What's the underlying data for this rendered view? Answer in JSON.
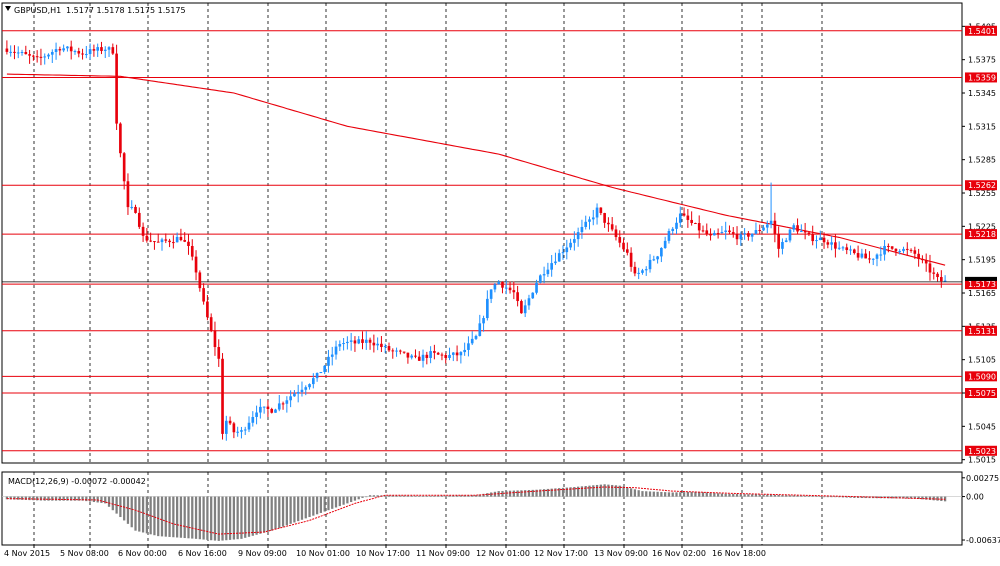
{
  "chart_data": [
    {
      "type": "candlestick",
      "header": {
        "symbol_label": "GBPUSD,H1",
        "ohlc_text": "1.5177 1.5178 1.5175 1.5175"
      },
      "y_tick_labels": [
        "1.5405",
        "1.5375",
        "1.5345",
        "1.5315",
        "1.5285",
        "1.5255",
        "1.5225",
        "1.5195",
        "1.5165",
        "1.5135",
        "1.5105",
        "1.5075",
        "1.5045",
        "1.5015"
      ],
      "y_ticks": [
        1.5405,
        1.5375,
        1.5345,
        1.5315,
        1.5285,
        1.5255,
        1.5225,
        1.5195,
        1.5165,
        1.5135,
        1.5105,
        1.5075,
        1.5045,
        1.5015
      ],
      "ylim": [
        1.5012,
        1.5426
      ],
      "x_tick_labels": [
        "4 Nov 2015",
        "5 Nov 08:00",
        "6 Nov 00:00",
        "6 Nov 16:00",
        "9 Nov 09:00",
        "10 Nov 01:00",
        "10 Nov 17:00",
        "11 Nov 09:00",
        "12 Nov 01:00",
        "12 Nov 17:00",
        "13 Nov 09:00",
        "16 Nov 02:00",
        "16 Nov 18:00"
      ],
      "horizontal_levels": [
        {
          "value": 1.5401,
          "label": "1.5401"
        },
        {
          "value": 1.5359,
          "label": "1.5359"
        },
        {
          "value": 1.5262,
          "label": "1.5262"
        },
        {
          "value": 1.5218,
          "label": "1.5218"
        },
        {
          "value": 1.5173,
          "label": "1.5173"
        },
        {
          "value": 1.5131,
          "label": "1.5131"
        },
        {
          "value": 1.509,
          "label": "1.5090"
        },
        {
          "value": 1.5075,
          "label": "1.5075"
        },
        {
          "value": 1.5023,
          "label": "1.5023"
        }
      ],
      "current_price": {
        "value": 1.5175
      },
      "price_anchors": [
        [
          0,
          1.5385
        ],
        [
          8,
          1.5375
        ],
        [
          14,
          1.5386
        ],
        [
          20,
          1.5381
        ],
        [
          26,
          1.5385
        ],
        [
          28,
          1.5383
        ],
        [
          29,
          1.532
        ],
        [
          30,
          1.529
        ],
        [
          32,
          1.524
        ],
        [
          34,
          1.524
        ],
        [
          36,
          1.5215
        ],
        [
          40,
          1.521
        ],
        [
          46,
          1.5215
        ],
        [
          48,
          1.5205
        ],
        [
          50,
          1.5185
        ],
        [
          52,
          1.5155
        ],
        [
          54,
          1.513
        ],
        [
          56,
          1.5105
        ],
        [
          57,
          1.504
        ],
        [
          58,
          1.505
        ],
        [
          60,
          1.504
        ],
        [
          62,
          1.504
        ],
        [
          64,
          1.505
        ],
        [
          66,
          1.506
        ],
        [
          70,
          1.506
        ],
        [
          74,
          1.507
        ],
        [
          78,
          1.508
        ],
        [
          82,
          1.509
        ],
        [
          86,
          1.511
        ],
        [
          88,
          1.512
        ],
        [
          92,
          1.512
        ],
        [
          96,
          1.5122
        ],
        [
          100,
          1.5115
        ],
        [
          104,
          1.511
        ],
        [
          108,
          1.5105
        ],
        [
          112,
          1.511
        ],
        [
          116,
          1.5108
        ],
        [
          120,
          1.511
        ],
        [
          124,
          1.5125
        ],
        [
          126,
          1.5145
        ],
        [
          128,
          1.517
        ],
        [
          130,
          1.5175
        ],
        [
          134,
          1.5165
        ],
        [
          136,
          1.5145
        ],
        [
          138,
          1.516
        ],
        [
          140,
          1.5175
        ],
        [
          142,
          1.5185
        ],
        [
          146,
          1.52
        ],
        [
          150,
          1.5215
        ],
        [
          154,
          1.523
        ],
        [
          156,
          1.524
        ],
        [
          158,
          1.523
        ],
        [
          160,
          1.522
        ],
        [
          164,
          1.52
        ],
        [
          166,
          1.518
        ],
        [
          168,
          1.5185
        ],
        [
          172,
          1.52
        ],
        [
          176,
          1.5225
        ],
        [
          178,
          1.5235
        ],
        [
          182,
          1.5225
        ],
        [
          186,
          1.5215
        ],
        [
          190,
          1.522
        ],
        [
          194,
          1.5215
        ],
        [
          198,
          1.522
        ],
        [
          202,
          1.523
        ],
        [
          204,
          1.5205
        ],
        [
          208,
          1.5225
        ],
        [
          212,
          1.5215
        ],
        [
          216,
          1.5213
        ],
        [
          220,
          1.5205
        ],
        [
          224,
          1.52
        ],
        [
          228,
          1.5195
        ],
        [
          232,
          1.5205
        ],
        [
          236,
          1.5205
        ],
        [
          240,
          1.52
        ],
        [
          244,
          1.5185
        ],
        [
          246,
          1.5177
        ],
        [
          248,
          1.5175
        ]
      ],
      "moving_average": [
        [
          0,
          1.5362
        ],
        [
          30,
          1.536
        ],
        [
          60,
          1.5345
        ],
        [
          90,
          1.5315
        ],
        [
          130,
          1.529
        ],
        [
          160,
          1.526
        ],
        [
          190,
          1.5235
        ],
        [
          220,
          1.5215
        ],
        [
          248,
          1.519
        ]
      ]
    },
    {
      "type": "histogram",
      "header_text": "MACD(12,26,9) -0.00072 -0.00042",
      "y_tick_labels": [
        "0.00275",
        "0.00",
        "-0.00637"
      ],
      "y_ticks": [
        0.00275,
        0.0,
        -0.00637
      ],
      "ylim": [
        -0.0071,
        0.0036
      ],
      "histogram_anchors": [
        [
          0,
          -0.0004
        ],
        [
          10,
          -0.0006
        ],
        [
          20,
          -0.0006
        ],
        [
          26,
          -0.001
        ],
        [
          30,
          -0.003
        ],
        [
          34,
          -0.005
        ],
        [
          40,
          -0.0058
        ],
        [
          50,
          -0.0062
        ],
        [
          56,
          -0.0065
        ],
        [
          62,
          -0.0062
        ],
        [
          70,
          -0.005
        ],
        [
          80,
          -0.003
        ],
        [
          90,
          -0.001
        ],
        [
          96,
          0.0002
        ],
        [
          110,
          0.0001
        ],
        [
          124,
          0.0002
        ],
        [
          130,
          0.0008
        ],
        [
          140,
          0.001
        ],
        [
          150,
          0.0014
        ],
        [
          158,
          0.0018
        ],
        [
          162,
          0.0016
        ],
        [
          168,
          0.0008
        ],
        [
          176,
          0.0006
        ],
        [
          182,
          0.0007
        ],
        [
          190,
          0.0004
        ],
        [
          200,
          0.0003
        ],
        [
          212,
          0.0001
        ],
        [
          224,
          -0.0002
        ],
        [
          240,
          -0.0003
        ],
        [
          248,
          -0.0007
        ]
      ],
      "signal_anchors": [
        [
          0,
          -0.0003
        ],
        [
          24,
          -0.0005
        ],
        [
          34,
          -0.002
        ],
        [
          44,
          -0.004
        ],
        [
          56,
          -0.0055
        ],
        [
          68,
          -0.0052
        ],
        [
          80,
          -0.0035
        ],
        [
          92,
          -0.001
        ],
        [
          100,
          0.0002
        ],
        [
          124,
          0.0002
        ],
        [
          140,
          0.0008
        ],
        [
          158,
          0.0014
        ],
        [
          166,
          0.0013
        ],
        [
          176,
          0.0008
        ],
        [
          190,
          0.0005
        ],
        [
          210,
          0.0002
        ],
        [
          230,
          -0.0001
        ],
        [
          248,
          -0.0004
        ]
      ]
    }
  ],
  "colors": {
    "bull_candle": "#1e90ff",
    "bear_candle": "#e8000b",
    "level_line": "#e8000b",
    "moving_average": "#e8000b",
    "histogram": "#808080",
    "signal": "#e8000b",
    "grid": "#000000",
    "current_price_marker": "#000000"
  }
}
